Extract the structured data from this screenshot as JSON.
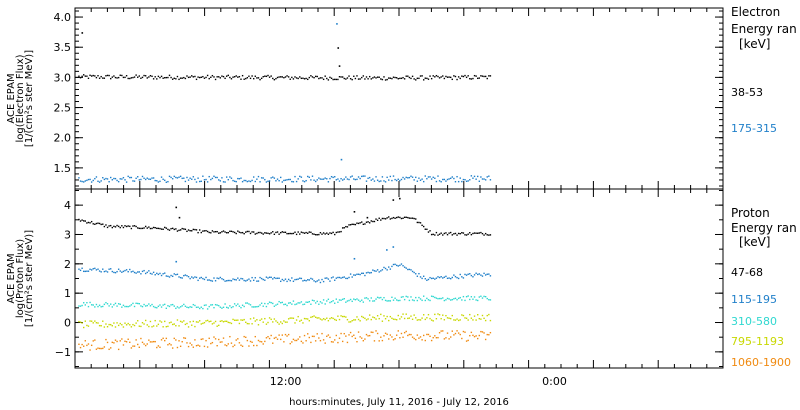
{
  "chart_data": [
    {
      "type": "scatter",
      "panel": "electron",
      "ylabel_lines": [
        "ACE EPAM",
        "log(Electron Flux)",
        "[1/(cm²s ster MeV)]"
      ],
      "ylim": [
        1.15,
        4.15
      ],
      "yticks": [
        1.5,
        2.0,
        2.5,
        3.0,
        3.5,
        4.0
      ],
      "ytick_labels": [
        "1.5",
        "2.0",
        "2.5",
        "3.0",
        "3.5",
        "4.0"
      ],
      "legend_title": [
        "Electron",
        "Energy ran",
        "[keV]"
      ],
      "series": [
        {
          "name": "38-53",
          "color": "#000000",
          "base": [
            [
              0,
              3.02
            ],
            [
              0.5,
              3.0
            ],
            [
              1.0,
              3.05
            ]
          ],
          "noise": 0.035,
          "stop": 0.64,
          "spikes": [
            [
              0.01,
              3.75
            ],
            [
              0.405,
              3.5
            ],
            [
              0.407,
              3.2
            ]
          ]
        },
        {
          "name": "175-315",
          "color": "#1f7fc9",
          "base": [
            [
              0,
              1.32
            ],
            [
              0.5,
              1.33
            ],
            [
              1.0,
              1.34
            ]
          ],
          "noise": 0.05,
          "stop": 0.64,
          "spikes": [
            [
              0.403,
              3.9
            ],
            [
              0.41,
              1.65
            ]
          ]
        }
      ]
    },
    {
      "type": "scatter",
      "panel": "proton",
      "ylabel_lines": [
        "ACE EPAM",
        "log(Proton Flux)",
        "[1/(cm²s ster MeV)]"
      ],
      "ylim": [
        -1.55,
        4.55
      ],
      "yticks": [
        -1,
        0,
        1,
        2,
        3,
        4
      ],
      "ytick_labels": [
        "−1",
        "0",
        "1",
        "2",
        "3",
        "4"
      ],
      "legend_title": [
        "Proton",
        "Energy ran",
        "[keV]"
      ],
      "series": [
        {
          "name": "47-68",
          "color": "#000000",
          "base": [
            [
              0,
              3.55
            ],
            [
              0.05,
              3.3
            ],
            [
              0.12,
              3.25
            ],
            [
              0.18,
              3.15
            ],
            [
              0.21,
              3.1
            ],
            [
              0.4,
              3.05
            ],
            [
              0.42,
              3.3
            ],
            [
              0.48,
              3.6
            ],
            [
              0.52,
              3.6
            ],
            [
              0.55,
              3.05
            ],
            [
              0.64,
              3.05
            ]
          ],
          "noise": 0.05,
          "stop": 0.64,
          "spikes": [
            [
              0.155,
              3.95
            ],
            [
              0.16,
              3.6
            ],
            [
              0.43,
              3.8
            ],
            [
              0.45,
              3.6
            ],
            [
              0.49,
              4.2
            ],
            [
              0.5,
              4.25
            ]
          ]
        },
        {
          "name": "115-195",
          "color": "#1f7fc9",
          "base": [
            [
              0,
              1.85
            ],
            [
              0.1,
              1.75
            ],
            [
              0.2,
              1.5
            ],
            [
              0.3,
              1.5
            ],
            [
              0.38,
              1.45
            ],
            [
              0.45,
              1.7
            ],
            [
              0.5,
              2.0
            ],
            [
              0.54,
              1.5
            ],
            [
              0.62,
              1.65
            ],
            [
              0.64,
              1.65
            ]
          ],
          "noise": 0.07,
          "stop": 0.64,
          "spikes": [
            [
              0.155,
              2.1
            ],
            [
              0.43,
              2.2
            ],
            [
              0.48,
              2.5
            ],
            [
              0.49,
              2.6
            ]
          ]
        },
        {
          "name": "310-580",
          "color": "#2fd8d0",
          "base": [
            [
              0,
              0.65
            ],
            [
              0.1,
              0.6
            ],
            [
              0.2,
              0.55
            ],
            [
              0.4,
              0.75
            ],
            [
              0.5,
              0.85
            ],
            [
              0.64,
              0.85
            ]
          ],
          "noise": 0.08,
          "stop": 0.64,
          "spikes": []
        },
        {
          "name": "795-1193",
          "color": "#c8d800",
          "base": [
            [
              0,
              -0.05
            ],
            [
              0.2,
              0.0
            ],
            [
              0.4,
              0.15
            ],
            [
              0.5,
              0.2
            ],
            [
              0.64,
              0.2
            ]
          ],
          "noise": 0.12,
          "stop": 0.64,
          "spikes": []
        },
        {
          "name": "1060-1900",
          "color": "#f08a10",
          "base": [
            [
              0,
              -0.75
            ],
            [
              0.2,
              -0.65
            ],
            [
              0.4,
              -0.5
            ],
            [
              0.5,
              -0.4
            ],
            [
              0.64,
              -0.45
            ]
          ],
          "noise": 0.18,
          "stop": 0.64,
          "spikes": []
        }
      ]
    }
  ],
  "x_axis": {
    "title": "hours:minutes, July 11, 2016 - July 12, 2016",
    "tick_labels": [
      {
        "frac": 0.325,
        "label": "12:00"
      },
      {
        "frac": 0.74,
        "label": "0:00"
      }
    ]
  }
}
